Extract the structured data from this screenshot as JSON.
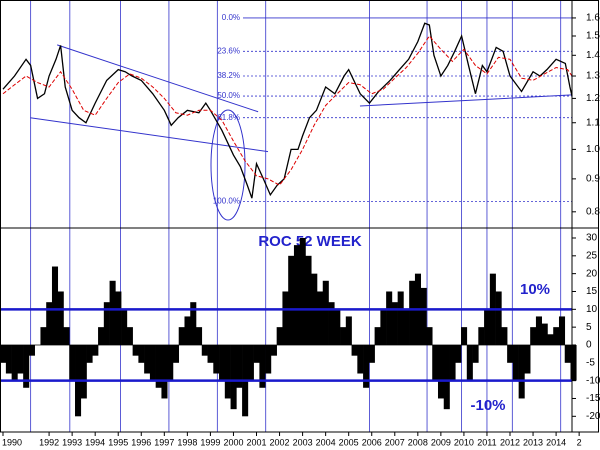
{
  "chart_data": [
    {
      "type": "line",
      "yscale": "log",
      "xlim": [
        1989.87,
        2014.69
      ],
      "ylim": [
        0.755,
        1.706
      ],
      "yticks": [
        0.8,
        0.9,
        {
          "value": 1,
          "label": "1.0"
        },
        1.1,
        1.2,
        1.3,
        1.4,
        1.5,
        1.6
      ],
      "vertical_lines": [
        1991.2,
        1992.9,
        1995.1,
        1997.2,
        1999.3,
        2001.4,
        2005.9,
        2008.4,
        2009.9,
        2011.0,
        2012.1,
        2014.2
      ],
      "fib_levels": [
        {
          "label": "0.0%",
          "value": 1.6
        },
        {
          "label": "23.6%",
          "value": 1.42
        },
        {
          "label": "38.2%",
          "value": 1.3
        },
        {
          "label": "50.0%",
          "value": 1.21
        },
        {
          "label": "61.8%",
          "value": 1.12
        },
        {
          "label": "100.0%",
          "value": 0.83
        }
      ],
      "trend_lines": [
        {
          "x": [
            1992.35,
            2001.07
          ],
          "y": [
            1.453,
            1.144
          ]
        },
        {
          "x": [
            1991.18,
            2001.5
          ],
          "y": [
            1.12,
            0.992
          ]
        },
        {
          "x": [
            2005.49,
            2014.69
          ],
          "y": [
            1.168,
            1.215
          ]
        }
      ],
      "series": [
        {
          "color": "#000000",
          "dash": false,
          "x": [
            1990.0,
            1990.5,
            1991.0,
            1991.2,
            1991.5,
            1991.8,
            1992.0,
            1992.3,
            1992.5,
            1992.7,
            1993.0,
            1993.3,
            1993.6,
            1994.0,
            1994.5,
            1995.0,
            1995.3,
            1995.6,
            1996.0,
            1996.5,
            1997.0,
            1997.3,
            1997.6,
            1998.0,
            1998.5,
            1998.8,
            1999.0,
            1999.5,
            2000.0,
            2000.3,
            2000.6,
            2000.8,
            2001.0,
            2001.3,
            2001.6,
            2001.9,
            2002.2,
            2002.5,
            2002.8,
            2003.0,
            2003.3,
            2003.6,
            2004.0,
            2004.4,
            2004.8,
            2005.0,
            2005.5,
            2005.9,
            2006.3,
            2006.8,
            2007.2,
            2007.6,
            2008.0,
            2008.3,
            2008.5,
            2008.7,
            2009.0,
            2009.3,
            2009.6,
            2009.9,
            2010.2,
            2010.5,
            2010.8,
            2011.0,
            2011.4,
            2011.7,
            2012.0,
            2012.5,
            2013.0,
            2013.3,
            2013.6,
            2014.0,
            2014.4,
            2014.6,
            2014.69
          ],
          "values": [
            1.24,
            1.3,
            1.38,
            1.35,
            1.2,
            1.22,
            1.3,
            1.38,
            1.45,
            1.25,
            1.15,
            1.12,
            1.1,
            1.18,
            1.28,
            1.33,
            1.32,
            1.3,
            1.28,
            1.22,
            1.15,
            1.09,
            1.12,
            1.15,
            1.14,
            1.18,
            1.15,
            1.07,
            0.98,
            0.94,
            0.88,
            0.84,
            0.95,
            0.9,
            0.85,
            0.88,
            0.9,
            1.0,
            1.0,
            1.05,
            1.12,
            1.15,
            1.25,
            1.22,
            1.3,
            1.33,
            1.22,
            1.18,
            1.23,
            1.28,
            1.33,
            1.38,
            1.47,
            1.57,
            1.56,
            1.4,
            1.3,
            1.35,
            1.42,
            1.5,
            1.35,
            1.22,
            1.35,
            1.32,
            1.44,
            1.42,
            1.3,
            1.23,
            1.32,
            1.3,
            1.33,
            1.38,
            1.36,
            1.25,
            1.21
          ]
        },
        {
          "color": "#dd0000",
          "dash": true,
          "x": [
            1990.0,
            1990.5,
            1991.0,
            1991.5,
            1992.0,
            1992.5,
            1993.0,
            1993.5,
            1994.0,
            1994.5,
            1995.0,
            1995.5,
            1996.0,
            1996.5,
            1997.0,
            1997.5,
            1998.0,
            1998.5,
            1999.0,
            1999.5,
            2000.0,
            2000.5,
            2001.0,
            2001.5,
            2002.0,
            2002.5,
            2003.0,
            2003.5,
            2004.0,
            2004.5,
            2005.0,
            2005.5,
            2006.0,
            2006.5,
            2007.0,
            2007.5,
            2008.0,
            2008.5,
            2009.0,
            2009.5,
            2010.0,
            2010.5,
            2011.0,
            2011.5,
            2012.0,
            2012.5,
            2013.0,
            2013.5,
            2014.0,
            2014.5,
            2014.69
          ],
          "values": [
            1.22,
            1.26,
            1.3,
            1.27,
            1.25,
            1.32,
            1.24,
            1.15,
            1.13,
            1.2,
            1.27,
            1.31,
            1.29,
            1.25,
            1.2,
            1.14,
            1.13,
            1.15,
            1.15,
            1.11,
            1.03,
            0.96,
            0.91,
            0.9,
            0.88,
            0.93,
            1.0,
            1.09,
            1.17,
            1.22,
            1.27,
            1.26,
            1.22,
            1.24,
            1.29,
            1.34,
            1.41,
            1.5,
            1.43,
            1.37,
            1.43,
            1.35,
            1.31,
            1.39,
            1.38,
            1.29,
            1.28,
            1.31,
            1.34,
            1.33,
            1.3
          ]
        }
      ]
    },
    {
      "type": "bar",
      "title": "ROC 52 WEEK",
      "color": "#000000",
      "xlim": [
        1989.87,
        2014.69
      ],
      "ylim": [
        -24.4,
        32.8
      ],
      "yticks": [
        -20,
        -15,
        -10,
        -5,
        0,
        5,
        10,
        15,
        20,
        25,
        30
      ],
      "xticks": [
        1990,
        1992,
        1993,
        1994,
        1995,
        1996,
        1997,
        1998,
        1999,
        2000,
        2001,
        2002,
        2003,
        2004,
        2005,
        2006,
        2007,
        2008,
        2009,
        2010,
        2011,
        2012,
        2013,
        2014,
        {
          "value": 2015,
          "label": "2"
        }
      ],
      "threshold_lines": [
        {
          "value": 10,
          "label": "10%"
        },
        {
          "value": -10,
          "label": "-10%"
        }
      ],
      "x": [
        1990.0,
        1990.25,
        1990.5,
        1990.75,
        1991.0,
        1991.25,
        1991.5,
        1991.75,
        1992.0,
        1992.25,
        1992.5,
        1992.75,
        1993.0,
        1993.25,
        1993.5,
        1993.75,
        1994.0,
        1994.25,
        1994.5,
        1994.75,
        1995.0,
        1995.25,
        1995.5,
        1995.75,
        1996.0,
        1996.25,
        1996.5,
        1996.75,
        1997.0,
        1997.25,
        1997.5,
        1997.75,
        1998.0,
        1998.25,
        1998.5,
        1998.75,
        1999.0,
        1999.25,
        1999.5,
        1999.75,
        2000.0,
        2000.25,
        2000.5,
        2000.75,
        2001.0,
        2001.25,
        2001.5,
        2001.75,
        2002.0,
        2002.25,
        2002.5,
        2002.75,
        2003.0,
        2003.25,
        2003.5,
        2003.75,
        2004.0,
        2004.25,
        2004.5,
        2004.75,
        2005.0,
        2005.25,
        2005.5,
        2005.75,
        2006.0,
        2006.25,
        2006.5,
        2006.75,
        2007.0,
        2007.25,
        2007.5,
        2007.75,
        2008.0,
        2008.25,
        2008.5,
        2008.75,
        2009.0,
        2009.25,
        2009.5,
        2009.75,
        2010.0,
        2010.25,
        2010.5,
        2010.75,
        2011.0,
        2011.25,
        2011.5,
        2011.75,
        2012.0,
        2012.25,
        2012.5,
        2012.75,
        2013.0,
        2013.25,
        2013.5,
        2013.75,
        2014.0,
        2014.25,
        2014.5,
        2014.75
      ],
      "values": [
        -5,
        -8,
        -10,
        -8,
        -12,
        -3,
        0,
        5,
        12,
        22,
        15,
        5,
        -10,
        -20,
        -15,
        -5,
        -3,
        5,
        12,
        18,
        15,
        10,
        5,
        -3,
        -5,
        -8,
        -10,
        -12,
        -15,
        -10,
        -5,
        5,
        8,
        12,
        5,
        -3,
        -5,
        -8,
        -10,
        -15,
        -18,
        -12,
        -20,
        -10,
        -5,
        -12,
        -8,
        -3,
        5,
        15,
        25,
        28,
        30,
        25,
        20,
        15,
        18,
        12,
        10,
        5,
        8,
        -3,
        -8,
        -12,
        -5,
        5,
        10,
        15,
        12,
        15,
        10,
        18,
        20,
        16,
        5,
        -10,
        -15,
        -18,
        -10,
        -5,
        5,
        -10,
        -5,
        5,
        10,
        20,
        15,
        5,
        -5,
        -10,
        -15,
        -8,
        5,
        8,
        6,
        3,
        5,
        8,
        -5,
        -10
      ]
    }
  ]
}
